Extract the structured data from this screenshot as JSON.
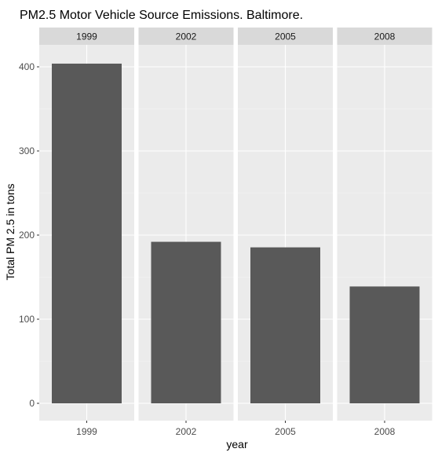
{
  "chart_data": {
    "type": "bar",
    "title": "PM2.5 Motor Vehicle Source Emissions. Baltimore.",
    "xlabel": "year",
    "ylabel": "Total PM 2.5 in tons",
    "facets": [
      "1999",
      "2002",
      "2005",
      "2008"
    ],
    "categories": [
      "1999",
      "2002",
      "2005",
      "2008"
    ],
    "values": [
      403.8,
      192.0,
      185.4,
      138.9
    ],
    "ylim": [
      0,
      420
    ],
    "yticks": [
      0,
      100,
      200,
      300,
      400
    ],
    "grid": true,
    "colors": {
      "bar": "#595959",
      "panel": "#ebebeb",
      "strip": "#d9d9d9",
      "grid_major": "#ffffff"
    }
  }
}
